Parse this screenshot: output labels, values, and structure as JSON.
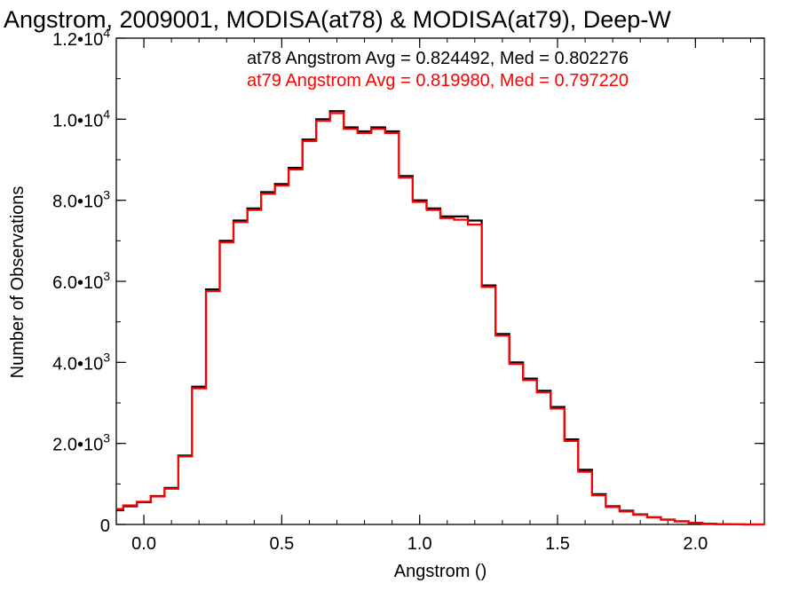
{
  "chart_data": {
    "type": "line",
    "title": "Angstrom, 2009001, MODISA(at78) & MODISA(at79), Deep-W",
    "xlabel": "Angstrom ()",
    "ylabel": "Number of Observations",
    "xlim": [
      -0.1,
      2.25
    ],
    "ylim": [
      0,
      12000
    ],
    "x_ticks": [
      0.0,
      0.5,
      1.0,
      1.5,
      2.0
    ],
    "x_tick_labels": [
      "0.0",
      "0.5",
      "1.0",
      "1.5",
      "2.0"
    ],
    "y_ticks": [
      0,
      2000,
      4000,
      6000,
      8000,
      10000,
      12000
    ],
    "y_tick_labels": [
      {
        "mantissa": "0",
        "exp": ""
      },
      {
        "mantissa": "2.0•10",
        "exp": "3"
      },
      {
        "mantissa": "4.0•10",
        "exp": "3"
      },
      {
        "mantissa": "6.0•10",
        "exp": "3"
      },
      {
        "mantissa": "8.0•10",
        "exp": "3"
      },
      {
        "mantissa": "1.0•10",
        "exp": "4"
      },
      {
        "mantissa": "1.2•10",
        "exp": "4"
      }
    ],
    "grid": false,
    "legend_position": "top-right",
    "x": [
      -0.1,
      -0.05,
      0.0,
      0.05,
      0.1,
      0.15,
      0.2,
      0.25,
      0.3,
      0.35,
      0.4,
      0.45,
      0.5,
      0.55,
      0.6,
      0.65,
      0.7,
      0.75,
      0.8,
      0.85,
      0.9,
      0.95,
      1.0,
      1.05,
      1.1,
      1.15,
      1.2,
      1.25,
      1.3,
      1.35,
      1.4,
      1.45,
      1.5,
      1.55,
      1.6,
      1.65,
      1.7,
      1.75,
      1.8,
      1.85,
      1.9,
      1.95,
      2.0,
      2.05,
      2.1,
      2.15,
      2.2,
      2.25
    ],
    "series": [
      {
        "name": "at78",
        "color": "#000000",
        "values": [
          350,
          450,
          550,
          700,
          900,
          1700,
          3400,
          5800,
          7000,
          7500,
          7800,
          8200,
          8400,
          8800,
          9500,
          10000,
          10200,
          9800,
          9700,
          9800,
          9700,
          8600,
          8000,
          7800,
          7600,
          7600,
          7500,
          5900,
          4700,
          4000,
          3600,
          3300,
          2900,
          2100,
          1350,
          750,
          450,
          340,
          250,
          180,
          120,
          80,
          40,
          20,
          8,
          3,
          0,
          0
        ]
      },
      {
        "name": "at79",
        "color": "#ff0000",
        "values": [
          380,
          470,
          560,
          690,
          880,
          1680,
          3360,
          5760,
          6960,
          7460,
          7760,
          8160,
          8360,
          8760,
          9460,
          9960,
          10150,
          9760,
          9660,
          9760,
          9660,
          8560,
          7960,
          7760,
          7560,
          7520,
          7400,
          5860,
          4660,
          3960,
          3560,
          3260,
          2860,
          2060,
          1300,
          720,
          430,
          320,
          240,
          170,
          115,
          75,
          38,
          18,
          7,
          2,
          0,
          0
        ]
      }
    ],
    "annotations": [
      {
        "text": "at78 Angstrom Avg = 0.824492, Med = 0.802276",
        "color": "#000000"
      },
      {
        "text": "at79 Angstrom Avg = 0.819980, Med = 0.797220",
        "color": "#ff0000"
      }
    ]
  }
}
